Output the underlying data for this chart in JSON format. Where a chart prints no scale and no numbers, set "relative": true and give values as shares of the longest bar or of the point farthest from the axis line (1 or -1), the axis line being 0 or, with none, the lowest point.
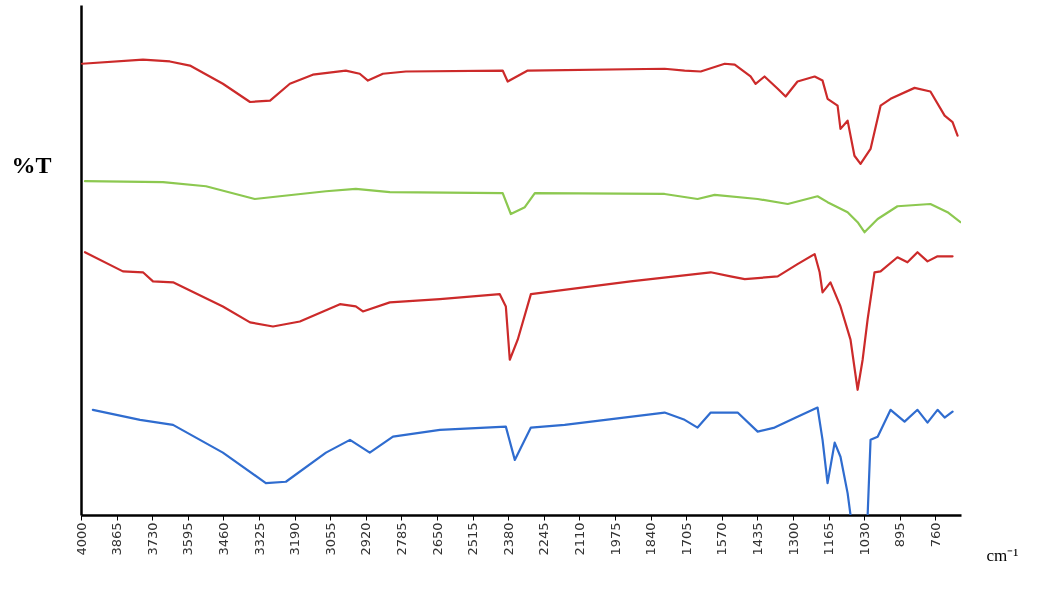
{
  "chart_data": {
    "type": "line",
    "ylabel": "%T",
    "xlabel": "cm⁻¹",
    "relative": true,
    "grid": false,
    "legend": false,
    "marker": "none",
    "line_style": "solid",
    "xlim": [
      4000,
      663
    ],
    "xticks": [
      4000,
      3865,
      3730,
      3595,
      3460,
      3325,
      3190,
      3055,
      2920,
      2785,
      2650,
      2515,
      2380,
      2245,
      2110,
      1975,
      1840,
      1705,
      1570,
      1435,
      1300,
      1165,
      1030,
      895,
      760
    ],
    "series": [
      {
        "color": "#cc2a2a",
        "x": [
          3996,
          3765,
          3663,
          3587,
          3462,
          3359,
          3283,
          3208,
          3121,
          2996,
          2943,
          2912,
          2855,
          2768,
          2401,
          2382,
          2306,
          1787,
          1711,
          1650,
          1559,
          1521,
          1461,
          1442,
          1408,
          1358,
          1328,
          1283,
          1218,
          1188,
          1169,
          1131,
          1120,
          1093,
          1067,
          1044,
          1006,
          968,
          930,
          839,
          779,
          725,
          695,
          676
        ],
        "values": [
          0.991,
          1.0,
          0.996,
          0.987,
          0.947,
          0.907,
          0.91,
          0.947,
          0.967,
          0.976,
          0.969,
          0.954,
          0.969,
          0.974,
          0.976,
          0.952,
          0.976,
          0.98,
          0.976,
          0.974,
          0.991,
          0.989,
          0.963,
          0.947,
          0.963,
          0.936,
          0.919,
          0.952,
          0.963,
          0.954,
          0.914,
          0.899,
          0.848,
          0.866,
          0.789,
          0.771,
          0.804,
          0.899,
          0.914,
          0.938,
          0.93,
          0.877,
          0.863,
          0.833
        ]
      },
      {
        "color": "#8cc850",
        "x": [
          3985,
          3689,
          3526,
          3341,
          3246,
          3071,
          2958,
          2829,
          2401,
          2370,
          2317,
          2279,
          1787,
          1662,
          1597,
          1434,
          1320,
          1207,
          1169,
          1093,
          1055,
          1029,
          979,
          904,
          779,
          714,
          665
        ],
        "values": [
          0.733,
          0.731,
          0.722,
          0.694,
          0.7,
          0.711,
          0.716,
          0.709,
          0.707,
          0.661,
          0.676,
          0.707,
          0.705,
          0.694,
          0.703,
          0.694,
          0.683,
          0.7,
          0.687,
          0.665,
          0.643,
          0.621,
          0.65,
          0.678,
          0.683,
          0.665,
          0.643
        ]
      },
      {
        "color": "#cc2a2a",
        "x": [
          3985,
          3841,
          3765,
          3727,
          3651,
          3462,
          3359,
          3272,
          3170,
          3018,
          2958,
          2931,
          2829,
          2639,
          2412,
          2389,
          2374,
          2344,
          2294,
          1916,
          1612,
          1537,
          1483,
          1358,
          1283,
          1218,
          1199,
          1188,
          1158,
          1120,
          1082,
          1055,
          1036,
          1017,
          991,
          968,
          904,
          866,
          828,
          790,
          752,
          695
        ],
        "values": [
          0.577,
          0.535,
          0.533,
          0.513,
          0.511,
          0.458,
          0.423,
          0.414,
          0.425,
          0.463,
          0.458,
          0.447,
          0.467,
          0.474,
          0.485,
          0.458,
          0.341,
          0.385,
          0.485,
          0.513,
          0.533,
          0.524,
          0.518,
          0.524,
          0.551,
          0.573,
          0.533,
          0.489,
          0.511,
          0.458,
          0.385,
          0.275,
          0.341,
          0.43,
          0.533,
          0.535,
          0.566,
          0.555,
          0.577,
          0.557,
          0.568,
          0.568
        ]
      },
      {
        "color": "#2f6ccf",
        "x": [
          3955,
          3776,
          3651,
          3462,
          3299,
          3223,
          3071,
          2980,
          2905,
          2817,
          2639,
          2389,
          2355,
          2294,
          2166,
          1787,
          1711,
          1662,
          1612,
          1510,
          1434,
          1370,
          1283,
          1207,
          1188,
          1169,
          1142,
          1120,
          1093,
          1082,
          1050,
          1017,
          1006,
          979,
          930,
          877,
          828,
          790,
          752,
          725,
          695
        ],
        "values": [
          0.231,
          0.209,
          0.198,
          0.137,
          0.07,
          0.073,
          0.137,
          0.165,
          0.137,
          0.172,
          0.187,
          0.194,
          0.121,
          0.192,
          0.198,
          0.225,
          0.209,
          0.192,
          0.225,
          0.225,
          0.183,
          0.192,
          0.216,
          0.236,
          0.165,
          0.07,
          0.159,
          0.128,
          0.048,
          0,
          null,
          0,
          0.165,
          0.172,
          0.231,
          0.205,
          0.231,
          0.203,
          0.231,
          0.214,
          0.227
        ]
      }
    ]
  }
}
